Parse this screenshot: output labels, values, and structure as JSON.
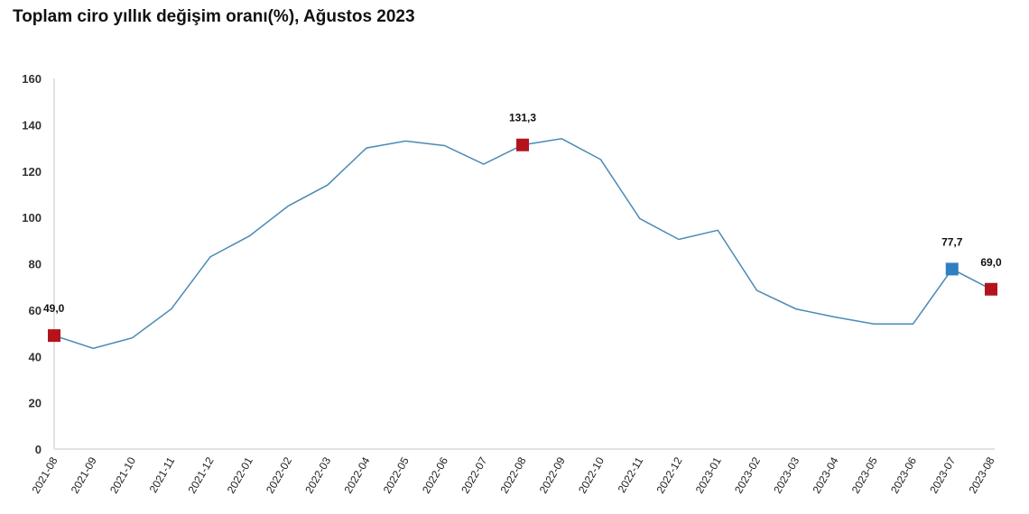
{
  "title": "Toplam ciro yıllık değişim oranı(%), Ağustos 2023",
  "colors": {
    "line": "#4a8ab5",
    "marker_red": "#b5131c",
    "marker_blue": "#2f7fc1",
    "axis": "#d9d9d9"
  },
  "chart_data": {
    "type": "line",
    "title": "Toplam ciro yıllık değişim oranı(%), Ağustos 2023",
    "xlabel": "",
    "ylabel": "",
    "ylim": [
      0,
      160
    ],
    "yticks": [
      0,
      20,
      40,
      60,
      80,
      100,
      120,
      140,
      160
    ],
    "grid": false,
    "categories": [
      "2021-08",
      "2021-09",
      "2021-10",
      "2021-11",
      "2021-12",
      "2022-01",
      "2022-02",
      "2022-03",
      "2022-04",
      "2022-05",
      "2022-06",
      "2022-07",
      "2022-08",
      "2022-09",
      "2022-10",
      "2022-11",
      "2022-12",
      "2023-01",
      "2023-02",
      "2023-03",
      "2023-04",
      "2023-05",
      "2023-06",
      "2023-07",
      "2023-08"
    ],
    "series": [
      {
        "values": [
          49.0,
          43.5,
          48.0,
          60.5,
          83.0,
          92.0,
          105.0,
          114.0,
          130.0,
          133.0,
          131.0,
          123.0,
          131.3,
          134.0,
          125.0,
          99.5,
          90.5,
          94.5,
          68.5,
          60.5,
          57.0,
          54.0,
          54.0,
          77.7,
          69.0
        ]
      }
    ],
    "highlights": [
      {
        "category": "2021-08",
        "value": 49.0,
        "label": "49,0",
        "color": "red"
      },
      {
        "category": "2022-08",
        "value": 131.3,
        "label": "131,3",
        "color": "red"
      },
      {
        "category": "2023-07",
        "value": 77.7,
        "label": "77,7",
        "color": "blue"
      },
      {
        "category": "2023-08",
        "value": 69.0,
        "label": "69,0",
        "color": "red"
      }
    ]
  }
}
